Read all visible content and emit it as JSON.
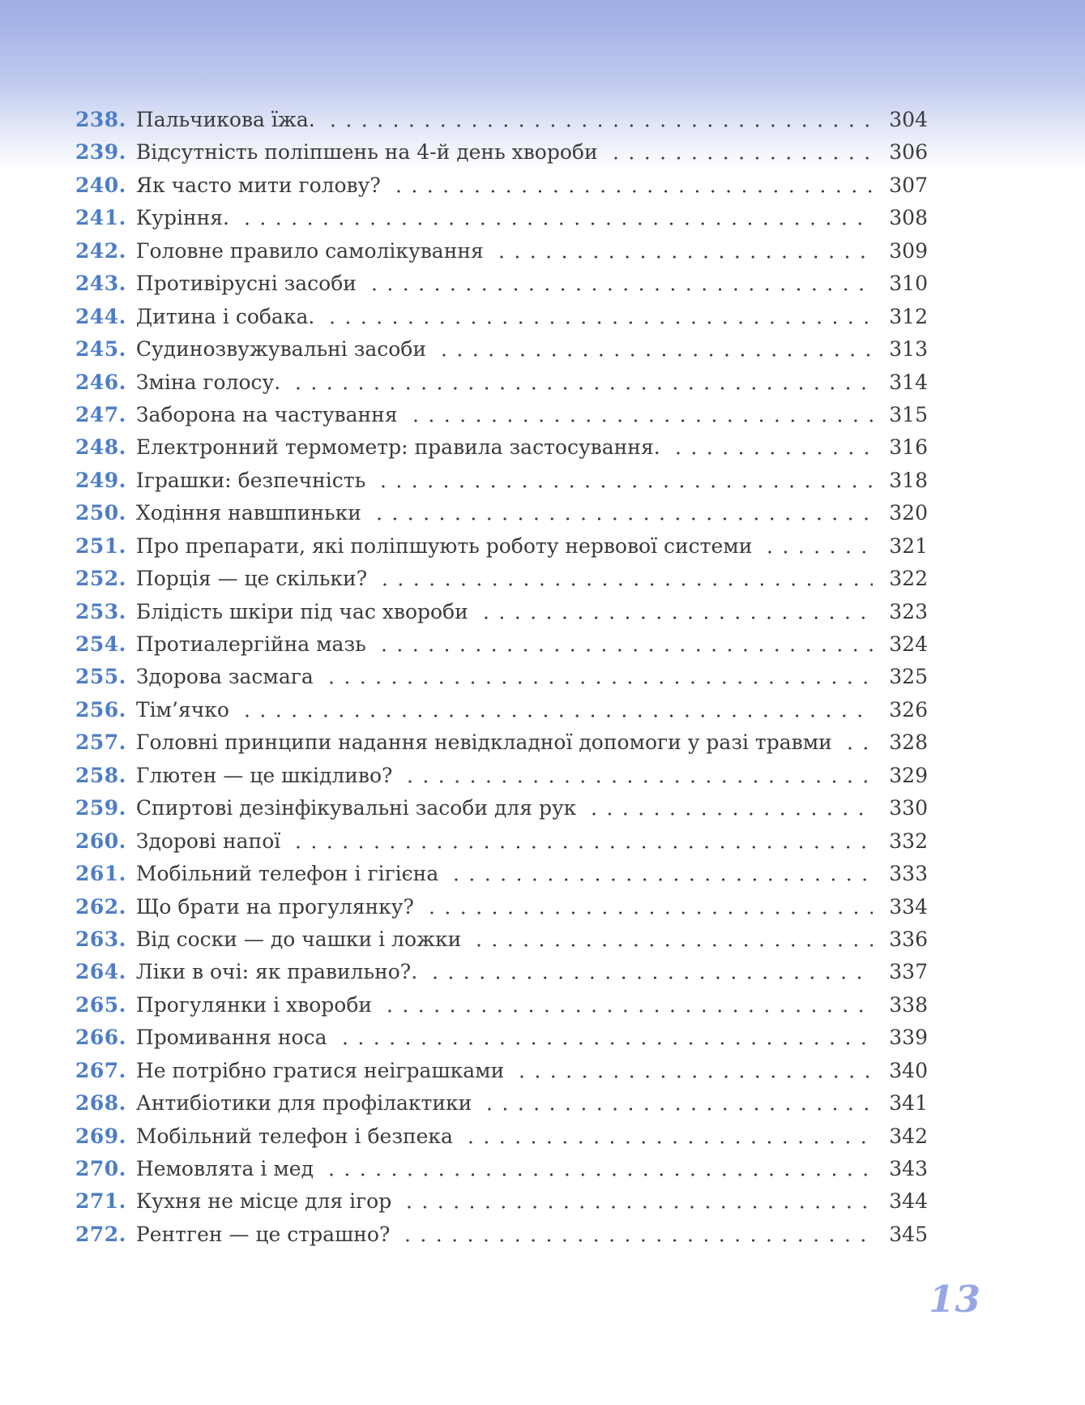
{
  "page": {
    "footer_page_number": "13",
    "accent_color": "#4d7dc6",
    "text_color": "#3b3b3b",
    "footer_color": "#97a6e3",
    "gradient_top_color": "#9fade4"
  },
  "toc": {
    "entries": [
      {
        "num": "238.",
        "title": "Пальчикова їжа.",
        "page": "304"
      },
      {
        "num": "239.",
        "title": "Відсутність поліпшень на 4-й день хвороби",
        "page": "306"
      },
      {
        "num": "240.",
        "title": "Як часто мити голову?",
        "page": "307"
      },
      {
        "num": "241.",
        "title": "Куріння.",
        "page": "308"
      },
      {
        "num": "242.",
        "title": "Головне правило самолікування",
        "page": "309"
      },
      {
        "num": "243.",
        "title": "Противірусні засоби",
        "page": "310"
      },
      {
        "num": "244.",
        "title": "Дитина і собака.",
        "page": "312"
      },
      {
        "num": "245.",
        "title": "Судинозвужувальні засоби",
        "page": "313"
      },
      {
        "num": "246.",
        "title": "Зміна голосу.",
        "page": "314"
      },
      {
        "num": "247.",
        "title": "Заборона на частування",
        "page": "315"
      },
      {
        "num": "248.",
        "title": "Електронний термометр: правила застосування.",
        "page": "316"
      },
      {
        "num": "249.",
        "title": "Іграшки: безпечність",
        "page": "318"
      },
      {
        "num": "250.",
        "title": "Ходіння навшпиньки",
        "page": "320"
      },
      {
        "num": "251.",
        "title": "Про препарати, які поліпшують роботу нервової системи",
        "page": "321"
      },
      {
        "num": "252.",
        "title": "Порція — це скільки?",
        "page": "322"
      },
      {
        "num": "253.",
        "title": "Блідість шкіри під час хвороби",
        "page": "323"
      },
      {
        "num": "254.",
        "title": "Протиалергійна мазь",
        "page": "324"
      },
      {
        "num": "255.",
        "title": "Здорова засмага",
        "page": "325"
      },
      {
        "num": "256.",
        "title": "Тім’ячко",
        "page": "326"
      },
      {
        "num": "257.",
        "title": "Головні принципи надання невідкладної допомоги у разі травми",
        "page": "328"
      },
      {
        "num": "258.",
        "title": "Глютен — це шкідливо?",
        "page": "329"
      },
      {
        "num": "259.",
        "title": "Спиртові дезінфікувальні засоби для рук",
        "page": "330"
      },
      {
        "num": "260.",
        "title": "Здорові напої",
        "page": "332"
      },
      {
        "num": "261.",
        "title": "Мобільний телефон і гігієна",
        "page": "333"
      },
      {
        "num": "262.",
        "title": "Що брати на прогулянку?",
        "page": "334"
      },
      {
        "num": "263.",
        "title": "Від соски — до чашки і ложки",
        "page": "336"
      },
      {
        "num": "264.",
        "title": "Ліки в очі: як правильно?.",
        "page": "337"
      },
      {
        "num": "265.",
        "title": "Прогулянки і хвороби",
        "page": "338"
      },
      {
        "num": "266.",
        "title": "Промивання носа",
        "page": "339"
      },
      {
        "num": "267.",
        "title": "Не потрібно гратися неіграшками",
        "page": "340"
      },
      {
        "num": "268.",
        "title": "Антибіотики для профілактики",
        "page": "341"
      },
      {
        "num": "269.",
        "title": "Мобільний телефон і безпека",
        "page": "342"
      },
      {
        "num": "270.",
        "title": "Немовлята і мед",
        "page": "343"
      },
      {
        "num": "271.",
        "title": "Кухня не місце для ігор",
        "page": "344"
      },
      {
        "num": "272.",
        "title": "Рентген — це страшно?",
        "page": "345"
      }
    ]
  }
}
